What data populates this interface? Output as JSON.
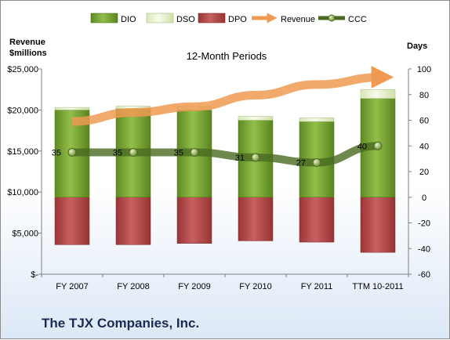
{
  "chart_data": {
    "type": "bar",
    "title": "12-Month Periods",
    "company": "The TJX Companies, Inc.",
    "left_axis_label_line1": "Revenue",
    "left_axis_label_line2": "$millions",
    "right_axis_label": "Days",
    "categories": [
      "FY 2007",
      "FY 2008",
      "FY 2009",
      "FY 2010",
      "FY 2011",
      "TTM 10-2011"
    ],
    "left_axis": {
      "min": 0,
      "max": 25000,
      "step": 5000,
      "ticks": [
        "$-",
        "$5,000",
        "$10,000",
        "$15,000",
        "$20,000",
        "$25,000"
      ]
    },
    "right_axis": {
      "min": -60,
      "max": 100,
      "step": 20,
      "ticks": [
        "-60",
        "-40",
        "-20",
        "0",
        "20",
        "40",
        "60",
        "80",
        "100"
      ]
    },
    "series": [
      {
        "name": "DIO",
        "unit": "days",
        "values": [
          68,
          69,
          68,
          60,
          59,
          77
        ],
        "color": "#77a033"
      },
      {
        "name": "DSO",
        "unit": "days",
        "values": [
          2,
          2,
          3,
          3,
          3,
          7
        ],
        "color": "#eef5d6"
      },
      {
        "name": "DPO",
        "unit": "days",
        "values": [
          -37,
          -37,
          -36,
          -34,
          -35,
          -43
        ],
        "color": "#b84a4a"
      },
      {
        "name": "Revenue",
        "unit": "$millions",
        "values": [
          18600,
          19700,
          20400,
          21800,
          23100,
          24000
        ],
        "color": "#f0a050"
      },
      {
        "name": "CCC",
        "unit": "days",
        "values": [
          35,
          35,
          35,
          31,
          27,
          40
        ],
        "color": "#4a6a22"
      }
    ],
    "ccc_labels": [
      "35",
      "35",
      "35",
      "31",
      "27",
      "40"
    ],
    "legend_position": "top",
    "grid": false
  }
}
